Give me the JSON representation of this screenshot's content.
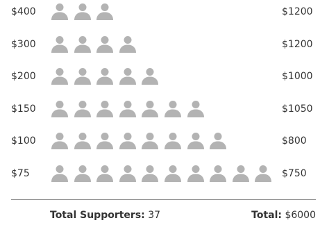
{
  "chart_data": {
    "type": "pictograph",
    "unit": "supporter",
    "icon": "person-icon",
    "icon_color": "#b3b3b3",
    "text_color": "#333333",
    "rows": [
      {
        "amount": "$400",
        "count": 3,
        "subtotal": "$1200"
      },
      {
        "amount": "$300",
        "count": 4,
        "subtotal": "$1200"
      },
      {
        "amount": "$200",
        "count": 5,
        "subtotal": "$1000"
      },
      {
        "amount": "$150",
        "count": 7,
        "subtotal": "$1050"
      },
      {
        "amount": "$100",
        "count": 8,
        "subtotal": "$800"
      },
      {
        "amount": "$75",
        "count": 10,
        "subtotal": "$750"
      }
    ],
    "footer": {
      "supporters_label": "Total Supporters:",
      "supporters_value": "37",
      "total_label": "Total:",
      "total_value": "$6000"
    }
  }
}
